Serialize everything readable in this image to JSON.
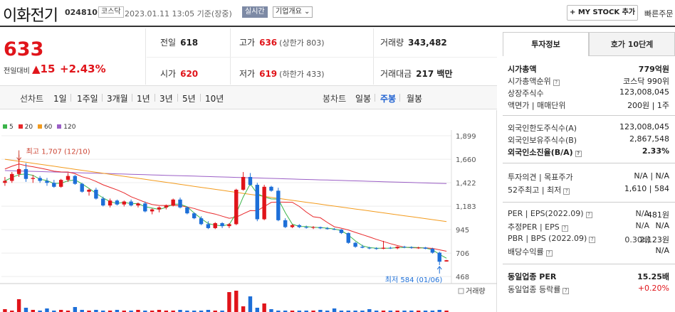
{
  "header": {
    "name": "이화전기",
    "code": "024810",
    "market": "코스닥",
    "datetime": "2023.01.11 13:05 기준(장중)",
    "realtime": "실시간",
    "overview": "기업개요 ⌄",
    "mystock": "+ MY STOCK 추가",
    "quick_order": "빠른주문"
  },
  "price": {
    "now": "633",
    "diff_label": "전일대비",
    "diff": "▲15",
    "pct": "+2.43%"
  },
  "quote": {
    "prev_label": "전일",
    "prev": "618",
    "high_label": "고가",
    "high": "636",
    "high_limit": "(상한가 803)",
    "volume_label": "거래량",
    "volume": "343,482",
    "open_label": "시가",
    "open": "620",
    "low_label": "저가",
    "low": "619",
    "low_limit": "(하한가 433)",
    "amount_label": "거래대금",
    "amount": "217 백만"
  },
  "period_bar": {
    "line_label": "선차트",
    "line_items": [
      "1일",
      "1주일",
      "3개월",
      "1년",
      "3년",
      "5년",
      "10년"
    ],
    "candle_label": "봉차트",
    "candle_items": [
      "일봉",
      "주봉",
      "월봉"
    ],
    "candle_active": 1
  },
  "chart_data": {
    "type": "candlestick",
    "legend": [
      {
        "name": "5",
        "color": "#3bb44a"
      },
      {
        "name": "20",
        "color": "#e8292b"
      },
      {
        "name": "60",
        "color": "#f39b1d"
      },
      {
        "name": "120",
        "color": "#9b5fc6"
      }
    ],
    "y_ticks": [
      1899,
      1660,
      1422,
      1183,
      945,
      706,
      468
    ],
    "ylim": [
      468,
      1899
    ],
    "annotations": {
      "max_label": "최고 1,707 (12/10)",
      "min_label": "최저 584 (01/06)"
    },
    "volume_label": "거래량",
    "candles": [
      [
        1420,
        1480,
        1390,
        1440
      ],
      [
        1440,
        1530,
        1420,
        1510
      ],
      [
        1510,
        1707,
        1480,
        1560
      ],
      [
        1560,
        1620,
        1430,
        1460
      ],
      [
        1460,
        1500,
        1420,
        1470
      ],
      [
        1470,
        1490,
        1420,
        1440
      ],
      [
        1440,
        1470,
        1390,
        1420
      ],
      [
        1420,
        1450,
        1370,
        1380
      ],
      [
        1380,
        1460,
        1370,
        1450
      ],
      [
        1450,
        1520,
        1430,
        1490
      ],
      [
        1490,
        1500,
        1400,
        1410
      ],
      [
        1410,
        1420,
        1320,
        1330
      ],
      [
        1330,
        1360,
        1290,
        1350
      ],
      [
        1350,
        1370,
        1250,
        1260
      ],
      [
        1260,
        1280,
        1180,
        1190
      ],
      [
        1190,
        1260,
        1170,
        1240
      ],
      [
        1240,
        1250,
        1190,
        1200
      ],
      [
        1200,
        1240,
        1180,
        1230
      ],
      [
        1230,
        1250,
        1180,
        1190
      ],
      [
        1190,
        1220,
        1170,
        1210
      ],
      [
        1210,
        1230,
        1120,
        1130
      ],
      [
        1130,
        1160,
        1100,
        1150
      ],
      [
        1150,
        1180,
        1120,
        1170
      ],
      [
        1170,
        1200,
        1150,
        1190
      ],
      [
        1190,
        1260,
        1180,
        1250
      ],
      [
        1250,
        1270,
        1160,
        1170
      ],
      [
        1170,
        1180,
        1100,
        1110
      ],
      [
        1110,
        1120,
        1050,
        1060
      ],
      [
        1060,
        1080,
        990,
        1000
      ],
      [
        1000,
        1030,
        950,
        960
      ],
      [
        960,
        1020,
        950,
        1010
      ],
      [
        1010,
        1020,
        960,
        980
      ],
      [
        980,
        1010,
        960,
        1000
      ],
      [
        1000,
        1360,
        990,
        1350
      ],
      [
        1350,
        1530,
        1340,
        1480
      ],
      [
        1480,
        1520,
        1390,
        1400
      ],
      [
        1400,
        1420,
        1030,
        1050
      ],
      [
        1050,
        1400,
        1040,
        1380
      ],
      [
        1380,
        1390,
        1330,
        1340
      ],
      [
        1340,
        1370,
        1030,
        1040
      ],
      [
        1040,
        1060,
        960,
        970
      ],
      [
        970,
        1000,
        960,
        990
      ],
      [
        990,
        1000,
        960,
        970
      ],
      [
        970,
        985,
        955,
        965
      ],
      [
        965,
        980,
        950,
        970
      ],
      [
        970,
        975,
        950,
        958
      ],
      [
        958,
        970,
        945,
        950
      ],
      [
        950,
        960,
        940,
        945
      ],
      [
        945,
        950,
        900,
        910
      ],
      [
        910,
        915,
        800,
        810
      ],
      [
        810,
        820,
        760,
        770
      ],
      [
        770,
        790,
        755,
        760
      ],
      [
        760,
        770,
        745,
        755
      ],
      [
        755,
        765,
        740,
        750
      ],
      [
        750,
        830,
        745,
        760
      ],
      [
        760,
        770,
        748,
        755
      ],
      [
        755,
        775,
        745,
        770
      ],
      [
        770,
        780,
        755,
        765
      ],
      [
        765,
        775,
        750,
        758
      ],
      [
        758,
        770,
        748,
        762
      ],
      [
        762,
        768,
        745,
        750
      ],
      [
        750,
        760,
        700,
        710
      ],
      [
        710,
        720,
        584,
        618
      ],
      [
        620,
        636,
        619,
        633
      ]
    ]
  },
  "side": {
    "tabs": [
      "투자정보",
      "호가 10단계"
    ],
    "rows": [
      {
        "k": "시가총액",
        "v": "779억원",
        "kb": true,
        "vb": true
      },
      {
        "k": "시가총액순위",
        "v": "코스닥 990위",
        "info": true
      },
      {
        "k": "상장주식수",
        "v": "123,008,045"
      },
      {
        "k": "액면가 | 매매단위",
        "v": "200원 | 1주"
      },
      {
        "k": "외국인한도주식수(A)",
        "v": "123,008,045"
      },
      {
        "k": "외국인보유주식수(B)",
        "v": "2,867,548"
      },
      {
        "k": "외국인소진율(B/A)",
        "v": "2.33%",
        "kb": true,
        "vb": true,
        "info": true
      },
      {
        "k": "투자의견 | 목표주가",
        "v": "N/A | N/A"
      },
      {
        "k": "52주최고 | 최저",
        "v": "1,610 | 584",
        "info": true
      },
      {
        "k": "PER | EPS(2022.09)",
        "v1": "N/A",
        "v": "-481원",
        "info": true
      },
      {
        "k": "추정PER | EPS",
        "v1": "N/A",
        "v": "N/A",
        "info": true
      },
      {
        "k": "PBR | BPS (2022.09)",
        "v1": "0.30배",
        "v": "2,123원",
        "info": true
      },
      {
        "k": "배당수익률",
        "v": "N/A",
        "info": true
      },
      {
        "k": "동일업종 PER",
        "v": "15.25배",
        "kb": true,
        "vb": true
      },
      {
        "k": "동일업종 등락률",
        "v": "+0.20%",
        "info": true,
        "vred": true
      }
    ]
  }
}
